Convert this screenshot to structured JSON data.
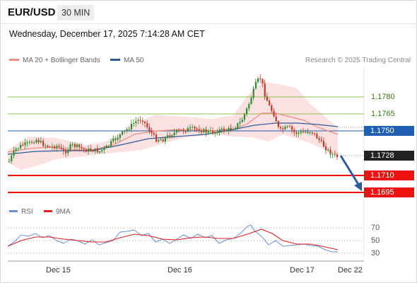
{
  "header": {
    "symbol": "EUR/USD",
    "timeframe": "30 MIN"
  },
  "datetime": "Wednesday, December 17, 2025 7:14:28 AM CET",
  "legend": {
    "ma20_label": "MA 20 + Bollinger Bands",
    "ma20_color": "#f28b82",
    "ma50_label": "MA 50",
    "ma50_color": "#2e5c9a"
  },
  "credit": "Research © 2025 Trading Central",
  "price_levels": {
    "resistance_2": "1.1780",
    "resistance_1": "1.1765",
    "pivot": "1.1750",
    "last": "1.1728",
    "support_1": "1.1710",
    "support_2": "1.1695"
  },
  "rsi_legend": {
    "rsi_label": "RSI",
    "rsi_color": "#6b8fd6",
    "ma_label": "9MA",
    "ma_color": "#e02020"
  },
  "rsi_axis": [
    "70",
    "50",
    "30"
  ],
  "x_axis": [
    "Dec 15",
    "Dec 16",
    "Dec 17",
    "Dec 22"
  ],
  "colors": {
    "up": "#2e8b2e",
    "down": "#c0392b",
    "support": "#ee1111",
    "pivot": "#1f5fb4",
    "resistance": "#8bc34a",
    "last": "#222222"
  }
}
